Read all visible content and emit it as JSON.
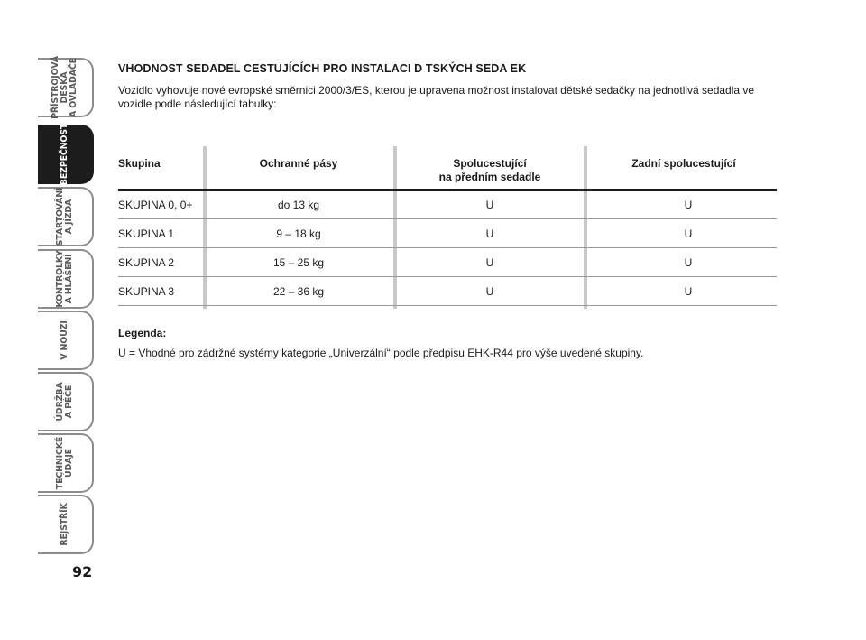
{
  "sidebar": {
    "tabs": [
      {
        "label": "PŘÍSTROJOVÁ\nDESKA\nA OVLADAČE",
        "active": false
      },
      {
        "label": "BEZPEČNOST",
        "active": true
      },
      {
        "label": "STARTOVÁNÍ\nA JÍZDA",
        "active": false
      },
      {
        "label": "KONTROLKY\nA HLÁŠENÍ",
        "active": false
      },
      {
        "label": "V NOUZI",
        "active": false
      },
      {
        "label": "ÚDRŽBA\nA PÉČE",
        "active": false
      },
      {
        "label": "TECHNICKÉ\nÚDAJE",
        "active": false
      },
      {
        "label": "REJSTŘÍK",
        "active": false
      }
    ]
  },
  "page_number": "92",
  "article": {
    "heading": "VHODNOST SEDADEL CESTUJÍCÍCH PRO INSTALACI D  TSKÝCH SEDA  EK",
    "intro": "Vozidlo vyhovuje nové evropské směrnici 2000/3/ES, kterou je upravena možnost instalovat dětské sedačky na jednotlivá sedadla ve vozidle podle následující tabulky:"
  },
  "table": {
    "headers": [
      "Skupina",
      "Ochranné pásy",
      "Spolucestující\nna předním sedadle",
      "Zadní spolucestující"
    ],
    "rows": [
      [
        "SKUPINA 0, 0+",
        "do 13 kg",
        "U",
        "U"
      ],
      [
        "SKUPINA 1",
        "9 – 18 kg",
        "U",
        "U"
      ],
      [
        "SKUPINA 2",
        "15 – 25 kg",
        "U",
        "U"
      ],
      [
        "SKUPINA 3",
        "22 – 36 kg",
        "U",
        "U"
      ]
    ]
  },
  "legend": {
    "title": "Legenda:",
    "text": "U = Vhodné pro zádržné systémy kategorie „Univerzální“ podle předpisu EHK-R44 pro výše uvedené skupiny."
  }
}
